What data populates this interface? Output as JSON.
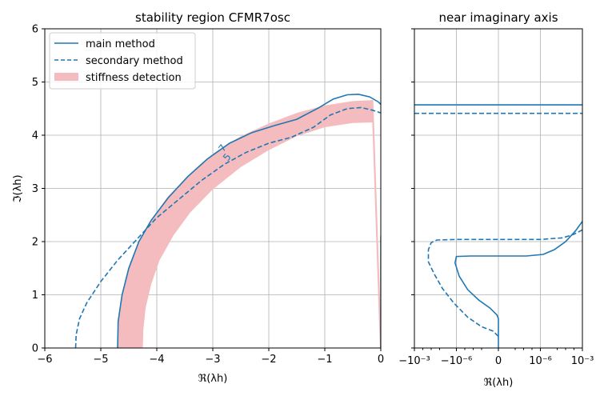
{
  "colors": {
    "main": "#1f77b4",
    "band": "#f4bcbe",
    "grid": "#b0b0b0"
  },
  "chart_data": [
    {
      "type": "line",
      "title": "stability region CFMR7osc",
      "xlabel": "ℜ(λh)",
      "ylabel": "ℑ(λh)",
      "xlim": [
        -6,
        0
      ],
      "ylim": [
        0,
        6
      ],
      "xticks": [
        -6,
        -5,
        -4,
        -3,
        -2,
        -1,
        0
      ],
      "xtick_labels": [
        "−6",
        "−5",
        "−4",
        "−3",
        "−2",
        "−1",
        "0"
      ],
      "yticks": [
        0,
        1,
        2,
        3,
        4,
        5,
        6
      ],
      "ytick_labels": [
        "0",
        "1",
        "2",
        "3",
        "4",
        "5",
        "6"
      ],
      "grid": true,
      "legend_position": "top-left",
      "series": [
        {
          "name": "main method",
          "style": "solid",
          "x": [
            -4.7,
            -4.69,
            -4.62,
            -4.5,
            -4.32,
            -4.1,
            -3.8,
            -3.45,
            -3.1,
            -2.7,
            -2.3,
            -1.9,
            -1.5,
            -1.1,
            -0.85,
            -0.6,
            -0.4,
            -0.2,
            -0.05,
            0
          ],
          "y": [
            0,
            0.5,
            1.0,
            1.5,
            2.0,
            2.4,
            2.82,
            3.22,
            3.55,
            3.85,
            4.05,
            4.18,
            4.3,
            4.52,
            4.68,
            4.76,
            4.77,
            4.72,
            4.63,
            4.58
          ]
        },
        {
          "name": "secondary method",
          "style": "dashed",
          "x": [
            -5.45,
            -5.44,
            -5.38,
            -5.25,
            -5.0,
            -4.7,
            -4.35,
            -4.0,
            -3.6,
            -3.2,
            -2.8,
            -2.4,
            -2.0,
            -1.6,
            -1.2,
            -0.9,
            -0.6,
            -0.35,
            -0.15,
            0
          ],
          "y": [
            0,
            0.25,
            0.55,
            0.85,
            1.25,
            1.65,
            2.05,
            2.45,
            2.8,
            3.15,
            3.45,
            3.68,
            3.85,
            3.96,
            4.15,
            4.38,
            4.5,
            4.52,
            4.47,
            4.42
          ]
        },
        {
          "name": "stiffness detection",
          "style": "band",
          "outer_x": [
            -4.7,
            -4.69,
            -4.62,
            -4.5,
            -4.32,
            -4.1,
            -3.8,
            -3.4,
            -3.0,
            -2.5,
            -2.0,
            -1.5,
            -1.0,
            -0.5,
            -0.15
          ],
          "outer_y": [
            0,
            0.5,
            1.0,
            1.5,
            2.0,
            2.4,
            2.85,
            3.28,
            3.65,
            3.98,
            4.22,
            4.42,
            4.56,
            4.64,
            4.66
          ],
          "inner_x": [
            -0.15,
            -0.5,
            -1.0,
            -1.5,
            -2.0,
            -2.5,
            -3.0,
            -3.4,
            -3.7,
            -3.95,
            -4.1,
            -4.2,
            -4.24,
            -4.25
          ],
          "inner_y": [
            4.24,
            4.23,
            4.15,
            3.98,
            3.72,
            3.4,
            2.98,
            2.55,
            2.12,
            1.65,
            1.2,
            0.75,
            0.35,
            0
          ],
          "edge_x": [
            -0.15,
            0
          ],
          "edge_y": [
            4.66,
            0
          ]
        }
      ],
      "annotations": [
        {
          "text": "7",
          "x": -2.78,
          "y": 3.72,
          "rotation": -52
        },
        {
          "text": "5",
          "x": -2.7,
          "y": 3.55,
          "rotation": -52
        }
      ]
    },
    {
      "type": "line",
      "title": "near imaginary axis",
      "xlabel": "ℜ(λh)",
      "ylabel": "",
      "xscale": "symlog",
      "ylim": [
        0,
        6
      ],
      "xticks": [
        -0.001,
        -1e-06,
        0,
        1e-06,
        0.001
      ],
      "xtick_labels": [
        "−10⁻³",
        "−10⁻⁶",
        "0",
        "10⁻⁶",
        "10⁻³"
      ],
      "grid": true,
      "series": [
        {
          "name": "main method",
          "style": "solid",
          "x_pos": [
            -3,
            -3,
            -2.9,
            -2.7,
            -2.4,
            -2.0,
            -1.6,
            -1.0,
            -0.3,
            0,
            0
          ],
          "y": [
            0,
            0,
            0,
            0,
            0,
            0,
            0,
            0,
            0,
            0,
            0
          ],
          "segments": [
            {
              "pos": [
                -3,
                3
              ],
              "y": [
                4.57,
                4.57
              ]
            },
            {
              "pos": [
                0,
                0,
                -0.05,
                -0.3,
                -0.7,
                -1.1,
                -1.4,
                -1.55,
                -1.5,
                -1.0,
                0,
                1.0,
                1.6,
                2.0,
                2.4,
                2.75,
                3.0
              ],
              "y": [
                0,
                0.55,
                0.62,
                0.75,
                0.9,
                1.1,
                1.35,
                1.6,
                1.72,
                1.73,
                1.73,
                1.73,
                1.76,
                1.85,
                2.0,
                2.2,
                2.38
              ]
            }
          ]
        },
        {
          "name": "secondary method",
          "style": "dashed",
          "segments": [
            {
              "pos": [
                -3,
                3
              ],
              "y": [
                4.41,
                4.41
              ]
            },
            {
              "pos": [
                0,
                -0.2,
                -0.6,
                -1.1,
                -1.6,
                -2.0,
                -2.3,
                -2.5,
                -2.5,
                -2.4,
                -2.2,
                -1.5,
                0,
                1.5,
                2.3,
                2.7,
                3.0
              ],
              "y": [
                0.22,
                0.32,
                0.4,
                0.58,
                0.85,
                1.12,
                1.4,
                1.62,
                1.85,
                1.98,
                2.03,
                2.04,
                2.04,
                2.04,
                2.07,
                2.14,
                2.22
              ]
            }
          ]
        }
      ]
    }
  ]
}
